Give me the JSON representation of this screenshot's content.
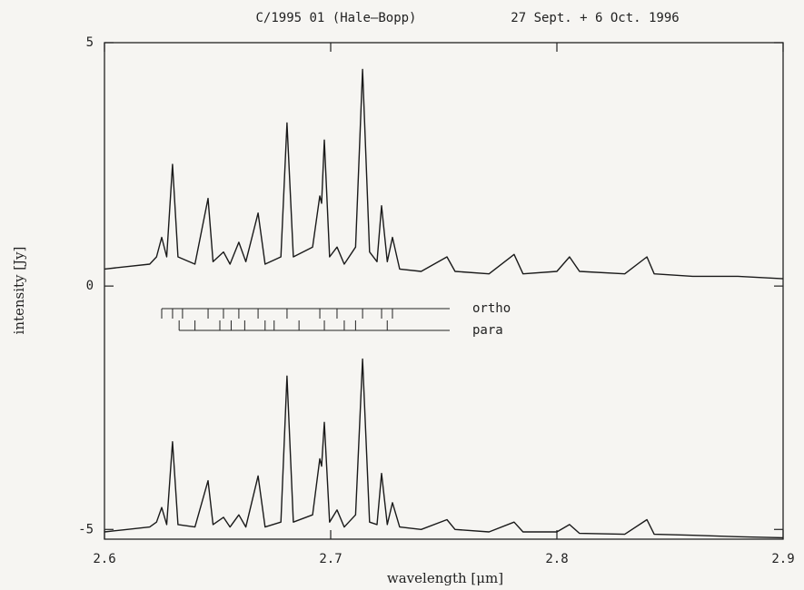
{
  "chart_data": {
    "type": "line",
    "title": "C/1995 01 (Hale–Bopp)",
    "subtitle": "27 Sept. + 6 Oct. 1996",
    "x_label": "wavelength [μm]",
    "y_label": "intensity [Jy]",
    "xlim": [
      2.6,
      2.9
    ],
    "xticks": [
      2.6,
      2.7,
      2.8,
      2.9
    ],
    "ylim": [
      -5.2,
      5
    ],
    "yticks": [
      -5,
      0,
      5
    ],
    "grid": false,
    "x": [
      2.6,
      2.61,
      2.62,
      2.623,
      2.6253,
      2.6275,
      2.6301,
      2.6325,
      2.64,
      2.6458,
      2.648,
      2.6526,
      2.6555,
      2.6594,
      2.6625,
      2.6679,
      2.671,
      2.678,
      2.6807,
      2.6835,
      2.692,
      2.6952,
      2.696,
      2.6972,
      2.6995,
      2.7028,
      2.706,
      2.711,
      2.7141,
      2.7172,
      2.7205,
      2.7225,
      2.725,
      2.7273,
      2.7305,
      2.74,
      2.7514,
      2.755,
      2.77,
      2.7811,
      2.785,
      2.8,
      2.8056,
      2.81,
      2.83,
      2.8398,
      2.843,
      2.86,
      2.88,
      2.9
    ],
    "series": [
      {
        "color": "#1a1a1a",
        "values": [
          0.35,
          0.4,
          0.45,
          0.6,
          1.0,
          0.6,
          2.5,
          0.6,
          0.45,
          1.8,
          0.5,
          0.7,
          0.45,
          0.9,
          0.5,
          1.5,
          0.45,
          0.6,
          3.35,
          0.6,
          0.8,
          1.85,
          1.7,
          3.0,
          0.6,
          0.8,
          0.45,
          0.8,
          4.45,
          0.7,
          0.5,
          1.65,
          0.5,
          1.0,
          0.35,
          0.3,
          0.6,
          0.3,
          0.25,
          0.65,
          0.25,
          0.3,
          0.6,
          0.3,
          0.25,
          0.6,
          0.25,
          0.2,
          0.2,
          0.15
        ]
      },
      {
        "color": "#1a1a1a",
        "values": [
          -5.05,
          -5.0,
          -4.95,
          -4.85,
          -4.55,
          -4.9,
          -3.2,
          -4.9,
          -4.95,
          -4.0,
          -4.9,
          -4.75,
          -4.95,
          -4.7,
          -4.95,
          -3.9,
          -4.95,
          -4.85,
          -1.85,
          -4.85,
          -4.7,
          -3.55,
          -3.7,
          -2.8,
          -4.85,
          -4.6,
          -4.95,
          -4.7,
          -1.5,
          -4.85,
          -4.9,
          -3.85,
          -4.9,
          -4.45,
          -4.95,
          -5.0,
          -4.8,
          -5.0,
          -5.05,
          -4.85,
          -5.05,
          -5.05,
          -4.9,
          -5.08,
          -5.1,
          -4.8,
          -5.1,
          -5.12,
          -5.15,
          -5.17
        ]
      }
    ],
    "annotations": [
      {
        "text": "ortho",
        "lines": [
          2.6253,
          2.6301,
          2.6345,
          2.6458,
          2.6526,
          2.6594,
          2.6679,
          2.6807,
          2.6952,
          2.7028,
          2.7141,
          2.7225,
          2.7273
        ]
      },
      {
        "text": "para",
        "lines": [
          2.633,
          2.64,
          2.651,
          2.656,
          2.662,
          2.671,
          2.675,
          2.686,
          2.6972,
          2.706,
          2.711,
          2.725
        ]
      }
    ]
  }
}
